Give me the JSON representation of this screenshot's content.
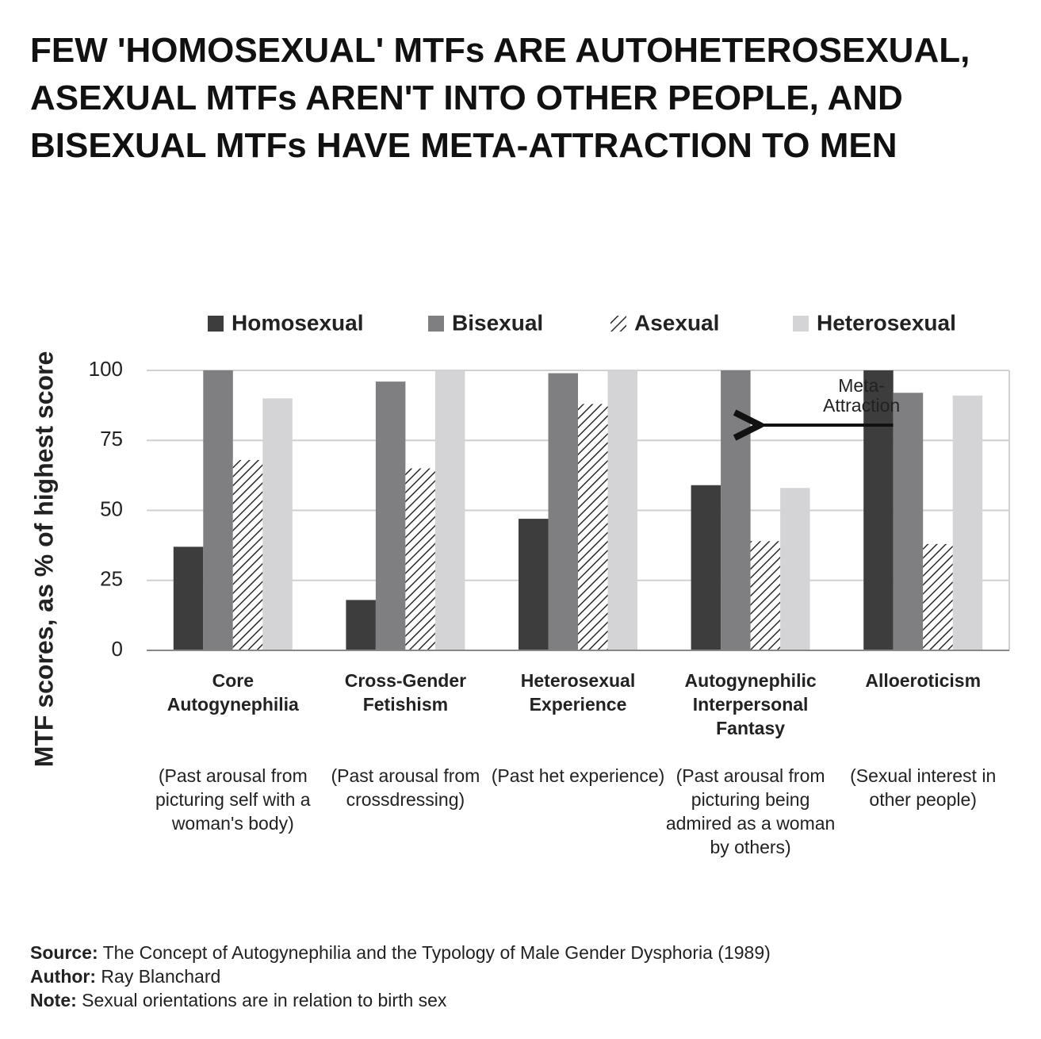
{
  "chart_data": {
    "type": "bar",
    "title": "FEW 'HOMOSEXUAL' MTFs ARE AUTOHETEROSEXUAL, ASEXUAL MTFs AREN'T INTO OTHER PEOPLE, AND BISEXUAL MTFs HAVE META-ATTRACTION TO MEN",
    "y_label": "MTF scores, as % of highest score",
    "categories": [
      "Core Autogynephilia",
      "Cross-Gender Fetishism",
      "Heterosexual Experience",
      "Autogynephilic Interpersonal Fantasy",
      "Alloeroticism"
    ],
    "category_notes": [
      "(Past arousal from picturing self with a woman's body)",
      "(Past arousal from crossdressing)",
      "(Past het experience)",
      "(Past arousal from picturing being admired as a woman by others)",
      "(Sexual interest in other people)"
    ],
    "series": [
      {
        "name": "Homosexual",
        "color": "#3d3d3d",
        "values": [
          37,
          18,
          47,
          59,
          100
        ]
      },
      {
        "name": "Bisexual",
        "color": "#7f7f81",
        "values": [
          100,
          96,
          99,
          100,
          92
        ]
      },
      {
        "name": "Asexual",
        "color": "#2a2a2a",
        "pattern": "hatch",
        "values": [
          68,
          65,
          88,
          39,
          38
        ]
      },
      {
        "name": "Heterosexual",
        "color": "#d4d4d6",
        "values": [
          90,
          100,
          100,
          58,
          91
        ]
      }
    ],
    "ylim": [
      0,
      100
    ],
    "yticks": [
      0,
      25,
      50,
      75,
      100
    ],
    "grid": true,
    "legend": "top",
    "annotations": [
      {
        "text": "Meta-Attraction",
        "category": 3
      }
    ],
    "footer": [
      {
        "label": "Source:",
        "text": "The Concept of Autogynephilia and the Typology of Male Gender Dysphoria (1989)"
      },
      {
        "label": "Author:",
        "text": "Ray Blanchard"
      },
      {
        "label": "Note:",
        "text": "Sexual orientations are in relation to birth sex"
      }
    ]
  }
}
